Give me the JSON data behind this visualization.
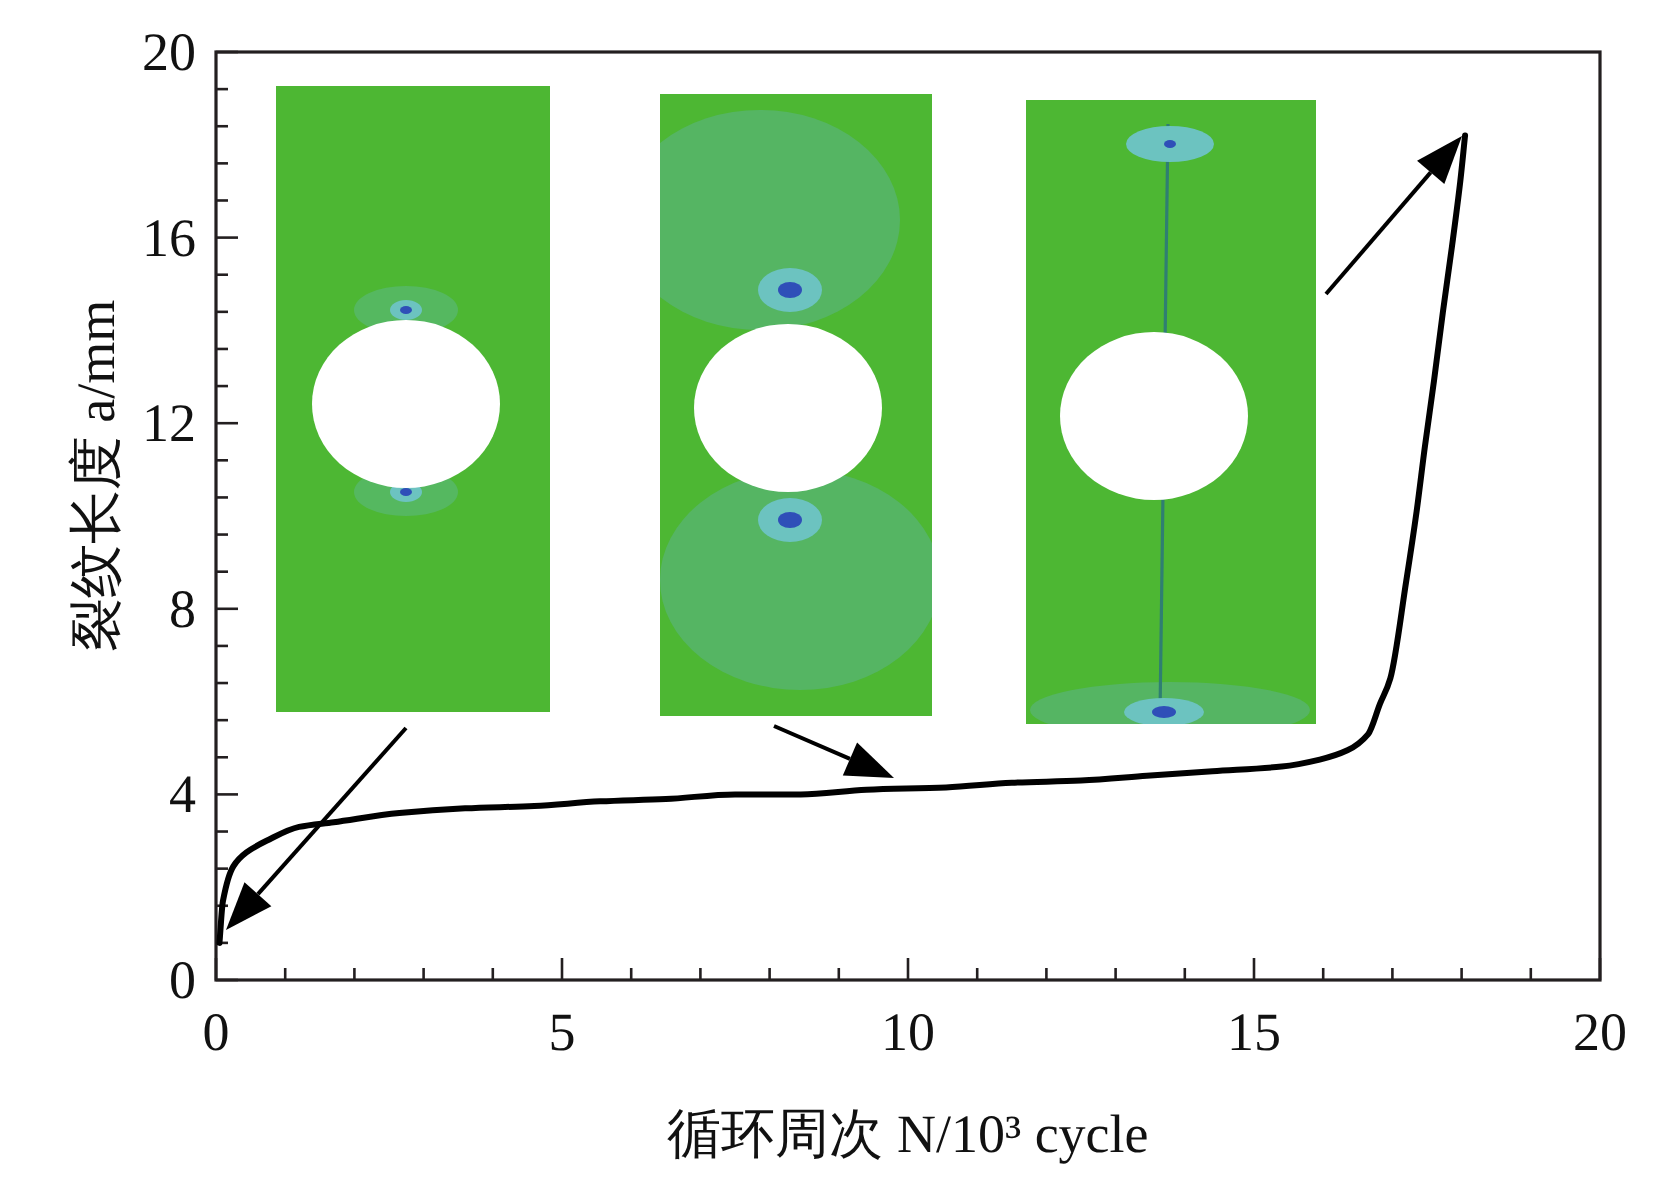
{
  "chart_data": {
    "type": "line",
    "xlabel": "循环周次 N/10³ cycle",
    "ylabel": "裂纹长度 a/mm",
    "x": [
      0.05,
      0.1,
      0.25,
      0.44,
      0.73,
      1.2,
      1.7,
      2.65,
      3.6,
      4.6,
      5.55,
      6.5,
      7.5,
      8.45,
      9.4,
      10.55,
      11.5,
      12.5,
      13.45,
      14.4,
      15.4,
      15.95,
      16.35,
      16.65,
      16.82,
      16.97,
      17.2,
      17.35,
      17.47,
      17.6,
      17.73,
      17.86,
      17.98,
      18.05
    ],
    "series": [
      {
        "color": "#000000",
        "values": [
          0.8,
          1.7,
          2.45,
          2.75,
          3.0,
          3.3,
          3.4,
          3.6,
          3.7,
          3.75,
          3.85,
          3.9,
          4.0,
          4.0,
          4.1,
          4.15,
          4.25,
          4.3,
          4.4,
          4.5,
          4.6,
          4.75,
          4.95,
          5.3,
          5.95,
          6.5,
          8.6,
          10.1,
          11.5,
          12.9,
          14.4,
          15.8,
          17.2,
          18.2
        ]
      }
    ],
    "xlim": [
      0,
      20
    ],
    "ylim": [
      0,
      20
    ],
    "xticks": [
      0,
      {
        "value": 1,
        "label": null
      },
      {
        "value": 2,
        "label": null
      },
      {
        "value": 3,
        "label": null
      },
      {
        "value": 4,
        "label": null
      },
      5,
      {
        "value": 6,
        "label": null
      },
      {
        "value": 7,
        "label": null
      },
      {
        "value": 8,
        "label": null
      },
      {
        "value": 9,
        "label": null
      },
      10,
      {
        "value": 11,
        "label": null
      },
      {
        "value": 12,
        "label": null
      },
      {
        "value": 13,
        "label": null
      },
      {
        "value": 14,
        "label": null
      },
      15,
      {
        "value": 16,
        "label": null
      },
      {
        "value": 17,
        "label": null
      },
      {
        "value": 18,
        "label": null
      },
      {
        "value": 19,
        "label": null
      },
      20
    ],
    "yticks": [
      0,
      {
        "value": 0.8,
        "label": null
      },
      {
        "value": 1.6,
        "label": null
      },
      {
        "value": 2.4,
        "label": null
      },
      {
        "value": 3.2,
        "label": null
      },
      4,
      {
        "value": 4.8,
        "label": null
      },
      {
        "value": 5.6,
        "label": null
      },
      {
        "value": 6.4,
        "label": null
      },
      {
        "value": 7.2,
        "label": null
      },
      8,
      {
        "value": 8.8,
        "label": null
      },
      {
        "value": 9.6,
        "label": null
      },
      {
        "value": 10.4,
        "label": null
      },
      {
        "value": 11.2,
        "label": null
      },
      12,
      {
        "value": 12.8,
        "label": null
      },
      {
        "value": 13.6,
        "label": null
      },
      {
        "value": 14.4,
        "label": null
      },
      {
        "value": 15.2,
        "label": null
      },
      16,
      {
        "value": 16.8,
        "label": null
      },
      {
        "value": 17.6,
        "label": null
      },
      {
        "value": 18.4,
        "label": null
      },
      {
        "value": 19.2,
        "label": null
      },
      20
    ],
    "line_style": "solid"
  }
}
